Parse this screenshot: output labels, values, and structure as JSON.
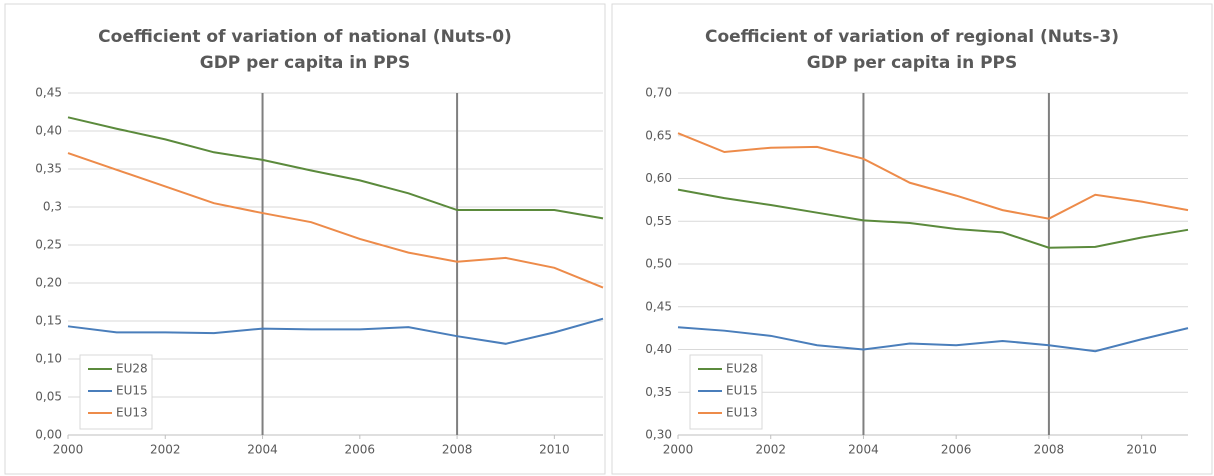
{
  "chart_data": [
    {
      "type": "line",
      "title": [
        "Coefficient of variation of national (Nuts-0)",
        "GDP per capita in PPS"
      ],
      "x": [
        2000,
        2001,
        2002,
        2003,
        2004,
        2005,
        2006,
        2007,
        2008,
        2009,
        2010,
        2011
      ],
      "xlim": [
        2000,
        2011
      ],
      "xticks": [
        2000,
        2002,
        2004,
        2006,
        2008,
        2010
      ],
      "ylim": [
        0,
        0.45
      ],
      "yticks": [
        {
          "value": 0,
          "label": "0,00"
        },
        {
          "value": 0.05,
          "label": "0,05"
        },
        {
          "value": 0.1,
          "label": "0,10"
        },
        {
          "value": 0.15,
          "label": "0,15"
        },
        {
          "value": 0.2,
          "label": "0,20"
        },
        {
          "value": 0.25,
          "label": "0,25"
        },
        {
          "value": 0.3,
          "label": "0,3"
        },
        {
          "value": 0.35,
          "label": "0,35"
        },
        {
          "value": 0.4,
          "label": "0,40"
        },
        {
          "value": 0.45,
          "label": "0,45"
        }
      ],
      "grid": true,
      "legend": "lower left",
      "vlines": [
        2004,
        2008
      ],
      "series": [
        {
          "name": "EU28",
          "color": "#5b8a3c",
          "values": [
            0.418,
            0.403,
            0.389,
            0.372,
            0.362,
            0.348,
            0.335,
            0.318,
            0.296,
            0.296,
            0.296,
            0.285
          ]
        },
        {
          "name": "EU15",
          "color": "#4a7ebb",
          "values": [
            0.143,
            0.135,
            0.135,
            0.134,
            0.14,
            0.139,
            0.139,
            0.142,
            0.13,
            0.12,
            0.135,
            0.153
          ]
        },
        {
          "name": "EU13",
          "color": "#ed8b4a",
          "values": [
            0.371,
            0.349,
            0.327,
            0.305,
            0.292,
            0.28,
            0.258,
            0.24,
            0.228,
            0.233,
            0.22,
            0.194
          ]
        }
      ]
    },
    {
      "type": "line",
      "title": [
        "Coefficient of variation of regional (Nuts-3)",
        "GDP per capita in PPS"
      ],
      "x": [
        2000,
        2001,
        2002,
        2003,
        2004,
        2005,
        2006,
        2007,
        2008,
        2009,
        2010,
        2011
      ],
      "xlim": [
        2000,
        2011
      ],
      "xticks": [
        2000,
        2002,
        2004,
        2006,
        2008,
        2010
      ],
      "ylim": [
        0.3,
        0.7
      ],
      "yticks": [
        {
          "value": 0.3,
          "label": "0,30"
        },
        {
          "value": 0.35,
          "label": "0,35"
        },
        {
          "value": 0.4,
          "label": "0,40"
        },
        {
          "value": 0.45,
          "label": "0,45"
        },
        {
          "value": 0.5,
          "label": "0,50"
        },
        {
          "value": 0.55,
          "label": "0,55"
        },
        {
          "value": 0.6,
          "label": "0,60"
        },
        {
          "value": 0.65,
          "label": "0,65"
        },
        {
          "value": 0.7,
          "label": "0,70"
        }
      ],
      "grid": true,
      "legend": "lower left",
      "vlines": [
        2004,
        2008
      ],
      "series": [
        {
          "name": "EU28",
          "color": "#5b8a3c",
          "values": [
            0.587,
            0.577,
            0.569,
            0.56,
            0.551,
            0.548,
            0.541,
            0.537,
            0.519,
            0.52,
            0.531,
            0.54
          ]
        },
        {
          "name": "EU15",
          "color": "#4a7ebb",
          "values": [
            0.426,
            0.422,
            0.416,
            0.405,
            0.4,
            0.407,
            0.405,
            0.41,
            0.405,
            0.398,
            0.412,
            0.425
          ]
        },
        {
          "name": "EU13",
          "color": "#ed8b4a",
          "values": [
            0.653,
            0.631,
            0.636,
            0.637,
            0.623,
            0.595,
            0.58,
            0.563,
            0.553,
            0.581,
            0.573,
            0.563
          ]
        }
      ]
    }
  ]
}
